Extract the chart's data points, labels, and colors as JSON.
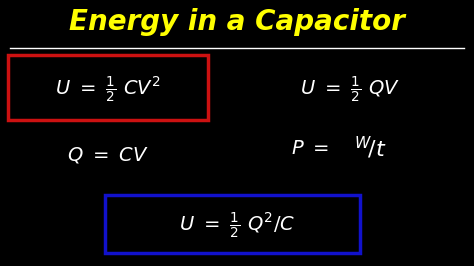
{
  "background_color": "#000000",
  "title": "Energy in a Capacitor",
  "title_color": "#FFFF00",
  "title_fontsize": 20,
  "divider_color": "#FFFFFF",
  "formula_color": "#FFFFFF",
  "red_box_color": "#CC1111",
  "blue_box_color": "#1111CC",
  "formula_fontsize": 13,
  "figsize": [
    4.74,
    2.66
  ],
  "dpi": 100
}
